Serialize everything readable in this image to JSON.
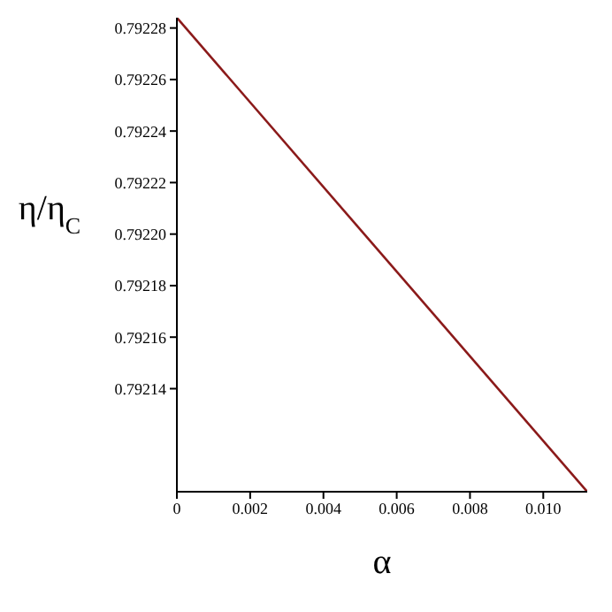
{
  "chart_data": {
    "type": "line",
    "xlabel": "α",
    "ylabel": "η/η$_{C}$",
    "x": [
      0,
      0.0112
    ],
    "series": [
      {
        "color": "#8b1a1a",
        "values": [
          0.792284,
          0.7921
        ]
      }
    ],
    "xlim": [
      0,
      0.0112
    ],
    "xticks": [
      0,
      0.002,
      0.004,
      0.006,
      0.008,
      {
        "value": 0.01,
        "label": "0.010"
      }
    ],
    "ylim": [
      0.7921,
      0.792284
    ],
    "yticks": [
      0.79214,
      0.79216,
      0.79218,
      {
        "value": 0.7922,
        "label": "0.79220"
      },
      0.79222,
      0.79224,
      0.79226,
      0.79228
    ],
    "grid": false,
    "legend": false,
    "marker": "none",
    "line_style": "solid"
  }
}
